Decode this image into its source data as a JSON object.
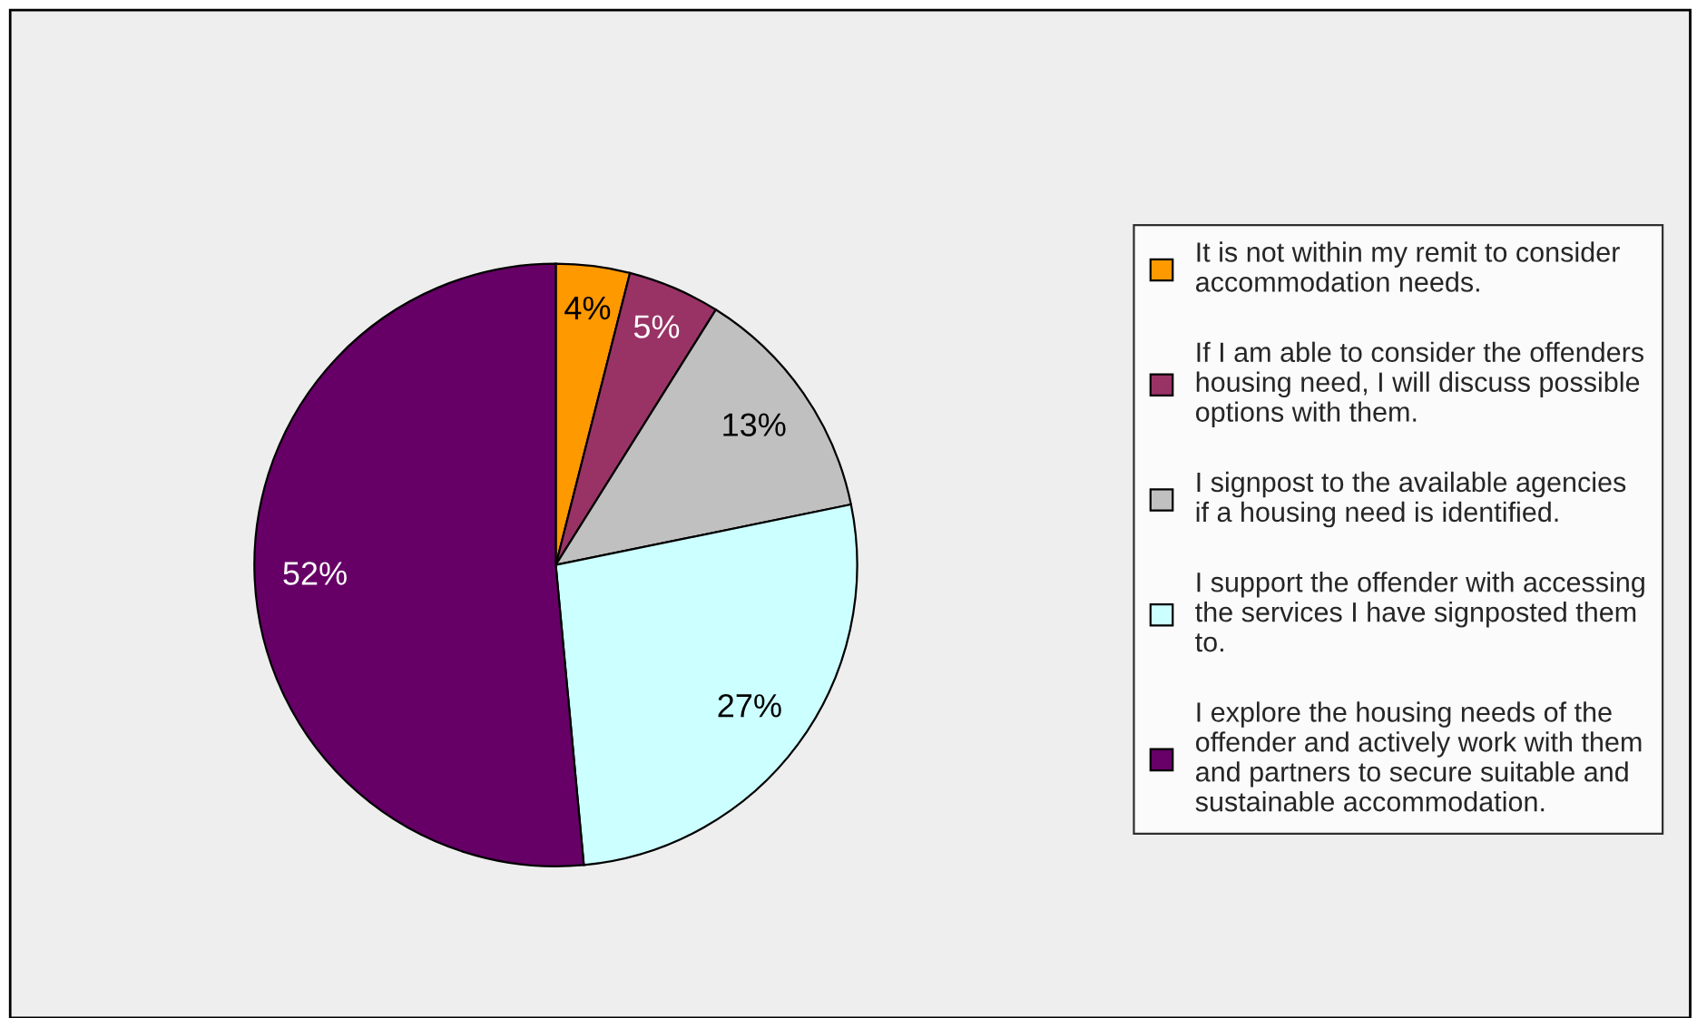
{
  "chart_data": {
    "type": "pie",
    "categories": [
      "It is not within my remit to consider accommodation needs.",
      "If I am able to consider the offenders housing need, I will discuss possible options with them.",
      "I signpost to the available agencies if a housing need is identified.",
      "I support the offender with accessing the services I have signposted them to.",
      "I explore the housing needs of the offender and actively work with them and partners to secure suitable and sustainable accommodation."
    ],
    "values": [
      4,
      5,
      13,
      27,
      52
    ],
    "colors": [
      "#ff9900",
      "#993366",
      "#c0c0c0",
      "#ccffff",
      "#660066"
    ],
    "value_labels": [
      "4%",
      "5%",
      "13%",
      "27%",
      "52%"
    ],
    "legend": "right"
  }
}
